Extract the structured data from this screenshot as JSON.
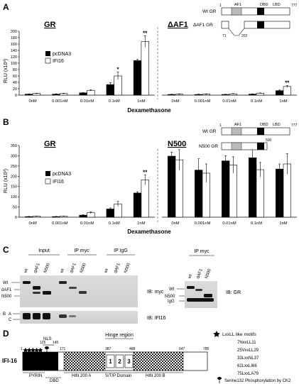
{
  "panel_a": {
    "letter": "A",
    "left_title": "GR",
    "right_title": "ΔAF1",
    "ylabel": "RLU (x10³)",
    "xlabel": "Dexamethasone",
    "legend": [
      "pcDNA3",
      "IFI16"
    ],
    "diagram": {
      "wt_label": "Wt GR",
      "mut_label": "ΔAF1 GR",
      "af1": "AF1",
      "dbd": "DBD",
      "lbd": "LBD",
      "start": "1",
      "end": "777",
      "del_start": "71",
      "del_end": "202"
    }
  },
  "panel_b": {
    "letter": "B",
    "left_title": "GR",
    "right_title": "N500",
    "ylabel": "RLU (x10³)",
    "xlabel": "Dexamethasone",
    "legend": [
      "pcDNA3",
      "IFI16"
    ],
    "diagram": {
      "wt_label": "Wt GR",
      "mut_label": "N500 GR",
      "af1": "AF1",
      "dbd": "DBD",
      "lbd": "LBD",
      "start": "1",
      "end": "777",
      "trunc": "500"
    }
  },
  "panel_c": {
    "letter": "C",
    "headers": [
      "Input",
      "IP myc",
      "IP IgG"
    ],
    "lanes": [
      "wt",
      "dAF1",
      "N500",
      "wt",
      "dAF1",
      "N500",
      "wt",
      "dAF1",
      "N500"
    ],
    "left_markers": {
      "wt": "Wt",
      "daf1": "dAF1",
      "n500": "N500",
      "b": "B",
      "a": "A",
      "c": "C"
    },
    "ib_top": "IB: myc",
    "ib_bottom": "IB: IFI16",
    "side_header": "IP myc",
    "side_lanes": [
      "wt",
      "dAF1",
      "N500"
    ],
    "side_markers": {
      "wt": "Wt",
      "n500": "N500",
      "igg": "IgG"
    },
    "side_ib": "IB: GR"
  },
  "panel_d": {
    "letter": "D",
    "protein": "IFI-16",
    "positions": {
      "p1": "1",
      "p125": "125",
      "p145": "145",
      "p171": "171",
      "p387": "387",
      "p488": "488",
      "p647": "647",
      "p785": "785"
    },
    "nls": "NLS",
    "hinge": "Hinge region",
    "repeats": [
      "1",
      "2",
      "3"
    ],
    "domains": {
      "pyrin": "PYRIN",
      "dbd": "DBD",
      "hin_a": "HIN 200 A",
      "stp": "S/T/P Domain",
      "hin_b": "HIN 200 B"
    },
    "motif_title": "LxxLL like motifs",
    "motifs": [
      "7NxxLL11",
      "25VxxLL29",
      "33LxxNL37",
      "62LxxLI66",
      "75LxxLA79"
    ],
    "phospho": "Serine132 Phosphorylation by CK2"
  },
  "chart_data": [
    {
      "type": "bar",
      "title": "GR",
      "categories": [
        "0nM",
        "0.001nM",
        "0.01nM",
        "0.1nM",
        "1nM"
      ],
      "xlabel": "Dexamethasone",
      "ylabel": "RLU (x10³)",
      "ylim": [
        0,
        200
      ],
      "yticks": [
        0,
        20,
        40,
        60,
        80,
        100,
        120,
        140,
        160,
        180,
        200
      ],
      "series": [
        {
          "name": "pcDNA3",
          "values": [
            3,
            3,
            7,
            33,
            108
          ],
          "errors": [
            1,
            1,
            1,
            6,
            4
          ]
        },
        {
          "name": "IFI16",
          "values": [
            5,
            5,
            15,
            60,
            168
          ],
          "errors": [
            1,
            1,
            2,
            12,
            18
          ]
        }
      ],
      "annotations": [
        {
          "category": "0.1nM",
          "series": "IFI16",
          "text": "*"
        },
        {
          "category": "1nM",
          "series": "IFI16",
          "text": "**"
        }
      ]
    },
    {
      "type": "bar",
      "title": "ΔAF1",
      "categories": [
        "0nM",
        "0.001nM",
        "0.01nM",
        "0.1nM",
        "1nM"
      ],
      "xlabel": "Dexamethasone",
      "ylim": [
        0,
        200
      ],
      "series": [
        {
          "name": "pcDNA3",
          "values": [
            2,
            2,
            2,
            3,
            14
          ],
          "errors": [
            1,
            1,
            1,
            1,
            2
          ]
        },
        {
          "name": "IFI16",
          "values": [
            3,
            3,
            4,
            6,
            27
          ],
          "errors": [
            1,
            1,
            1,
            1,
            3
          ]
        }
      ],
      "annotations": [
        {
          "category": "1nM",
          "series": "IFI16",
          "text": "**"
        }
      ]
    },
    {
      "type": "bar",
      "title": "GR",
      "categories": [
        "0nM",
        "0.001nM",
        "0.01nM",
        "0.1nM",
        "1nM"
      ],
      "xlabel": "Dexamethasone",
      "ylabel": "RLU (x10³)",
      "ylim": [
        0,
        350
      ],
      "yticks": [
        0,
        50,
        100,
        150,
        200,
        250,
        300,
        350
      ],
      "series": [
        {
          "name": "pcDNA3",
          "values": [
            3,
            3,
            10,
            40,
            118
          ],
          "errors": [
            1,
            1,
            2,
            5,
            6
          ]
        },
        {
          "name": "IFI16",
          "values": [
            5,
            5,
            22,
            65,
            182
          ],
          "errors": [
            1,
            1,
            5,
            12,
            24
          ]
        }
      ],
      "annotations": [
        {
          "category": "1nM",
          "series": "IFI16",
          "text": "**"
        }
      ]
    },
    {
      "type": "bar",
      "title": "N500",
      "categories": [
        "0nM",
        "0.001nM",
        "0.01nM",
        "0.1nM",
        "1nM"
      ],
      "xlabel": "Dexamethasone",
      "ylim": [
        0,
        350
      ],
      "series": [
        {
          "name": "pcDNA3",
          "values": [
            298,
            230,
            275,
            290,
            235
          ],
          "errors": [
            20,
            55,
            25,
            60,
            25
          ]
        },
        {
          "name": "IFI16",
          "values": [
            280,
            215,
            255,
            232,
            260
          ],
          "errors": [
            50,
            45,
            40,
            35,
            50
          ]
        }
      ],
      "annotations": []
    }
  ]
}
